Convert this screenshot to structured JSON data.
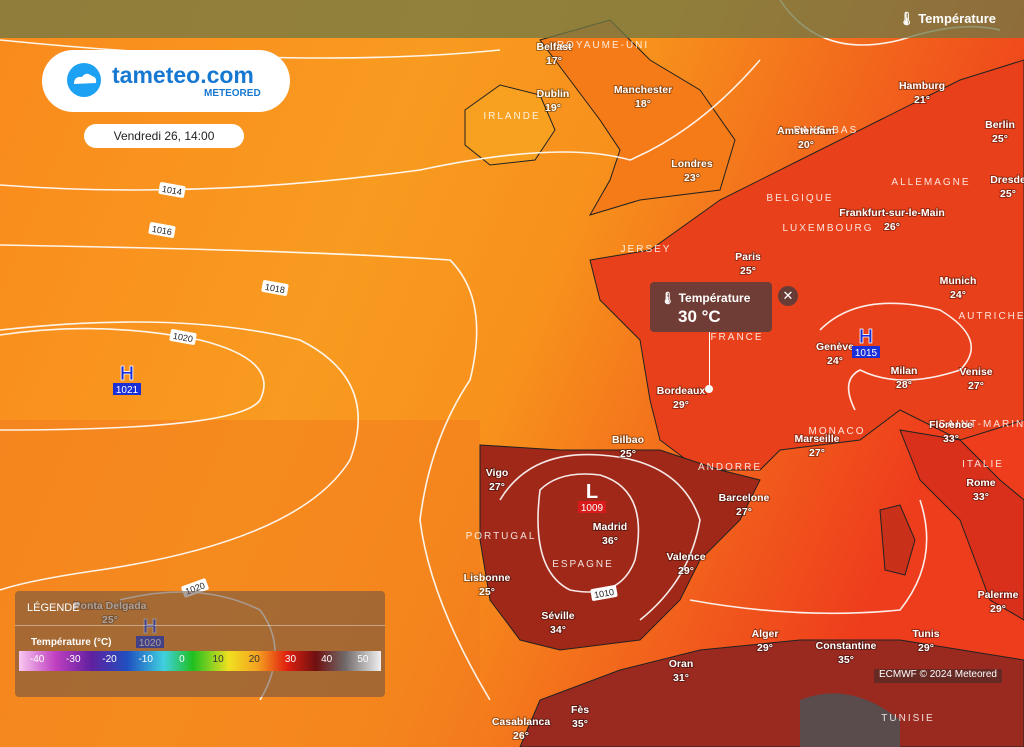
{
  "header": {
    "logo": "tameteo.com",
    "brand": "METEORED",
    "date": "Vendredi 26, 14:00",
    "layer": "Température"
  },
  "popup": {
    "title": "Température",
    "value": "30 °C"
  },
  "legend": {
    "title": "LÉGENDE",
    "label": "Température (°C)",
    "scale": [
      "-40",
      "-30",
      "-20",
      "-10",
      "0",
      "10",
      "20",
      "30",
      "40",
      "50"
    ]
  },
  "attribution": "ECMWF © 2024 Meteored",
  "cities": [
    {
      "name": "Belfast",
      "temp": "17°"
    },
    {
      "name": "Dublin",
      "temp": "19°"
    },
    {
      "name": "Manchester",
      "temp": "18°"
    },
    {
      "name": "Londres",
      "temp": "23°"
    },
    {
      "name": "Amsterdam",
      "temp": "20°"
    },
    {
      "name": "Hamburg",
      "temp": "21°"
    },
    {
      "name": "Berlin",
      "temp": "25°"
    },
    {
      "name": "Dresde",
      "temp": "25°"
    },
    {
      "name": "Frankfurt-sur-le-Main",
      "temp": "26°"
    },
    {
      "name": "Paris",
      "temp": "25°"
    },
    {
      "name": "Munich",
      "temp": "24°"
    },
    {
      "name": "Genève",
      "temp": "24°"
    },
    {
      "name": "Milan",
      "temp": "28°"
    },
    {
      "name": "Venise",
      "temp": "27°"
    },
    {
      "name": "Bordeaux",
      "temp": "29°"
    },
    {
      "name": "Marseille",
      "temp": "27°"
    },
    {
      "name": "Florence",
      "temp": "33°"
    },
    {
      "name": "Bilbao",
      "temp": "25°"
    },
    {
      "name": "Vigo",
      "temp": "27°"
    },
    {
      "name": "Barcelone",
      "temp": "27°"
    },
    {
      "name": "Rome",
      "temp": "33°"
    },
    {
      "name": "Madrid",
      "temp": "36°"
    },
    {
      "name": "Valence",
      "temp": "29°"
    },
    {
      "name": "Lisbonne",
      "temp": "25°"
    },
    {
      "name": "Séville",
      "temp": "34°"
    },
    {
      "name": "Alger",
      "temp": "29°"
    },
    {
      "name": "Constantine",
      "temp": "35°"
    },
    {
      "name": "Tunis",
      "temp": "29°"
    },
    {
      "name": "Palerme",
      "temp": "29°"
    },
    {
      "name": "Oran",
      "temp": "31°"
    },
    {
      "name": "Fès",
      "temp": "35°"
    },
    {
      "name": "Casablanca",
      "temp": "26°"
    },
    {
      "name": "Ponta Delgada",
      "temp": "25°"
    }
  ],
  "countries": [
    "ROYAUME-UNI",
    "IRLANDE",
    "PAYS-BAS",
    "BELGIQUE",
    "ALLEMAGNE",
    "LUXEMBOURG",
    "JERSEY",
    "FRANCE",
    "AUTRICHE",
    "MONACO",
    "SAINT-MARIN",
    "ITALIE",
    "ANDORRE",
    "PORTUGAL",
    "ESPAGNE",
    "TUNISIE"
  ],
  "pressure_centers": [
    {
      "kind": "H",
      "value": "1021"
    },
    {
      "kind": "H",
      "value": "1020"
    },
    {
      "kind": "H",
      "value": "1015"
    },
    {
      "kind": "L",
      "value": "1009"
    }
  ],
  "isobars": [
    "1014",
    "1016",
    "1018",
    "1020",
    "1020",
    "1010"
  ]
}
